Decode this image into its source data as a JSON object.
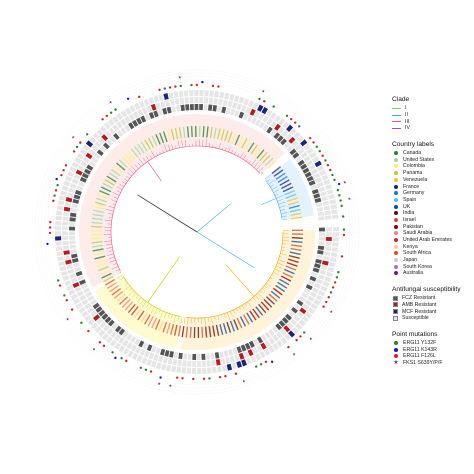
{
  "chart_data": {
    "type": "circular-phylogenetic-tree",
    "title": "",
    "legends": {
      "clade": {
        "title": "Clade",
        "items": [
          {
            "label": "I",
            "color": "#8dc63f"
          },
          {
            "label": "II",
            "color": "#3fa9f5"
          },
          {
            "label": "III",
            "color": "#e75480"
          },
          {
            "label": "IV",
            "color": "#9b59b6"
          }
        ]
      },
      "country": {
        "title": "Country labels",
        "items": [
          {
            "label": "Canada",
            "color": "#2e7d32"
          },
          {
            "label": "United States",
            "color": "#a5d6a7"
          },
          {
            "label": "Colombia",
            "color": "#fff176"
          },
          {
            "label": "Panama",
            "color": "#c0ca33"
          },
          {
            "label": "Venezuela",
            "color": "#fbc02d"
          },
          {
            "label": "France",
            "color": "#1a237e"
          },
          {
            "label": "Germany",
            "color": "#1976d2"
          },
          {
            "label": "Spain",
            "color": "#4fc3f7"
          },
          {
            "label": "UK",
            "color": "#0d47a1"
          },
          {
            "label": "India",
            "color": "#5d0f0f"
          },
          {
            "label": "Israel",
            "color": "#b35a3a"
          },
          {
            "label": "Pakistan",
            "color": "#8b0000"
          },
          {
            "label": "Saudi Arabia",
            "color": "#f08080"
          },
          {
            "label": "United Arab Emirates",
            "color": "#c62828"
          },
          {
            "label": "Kenya",
            "color": "#ffcc99"
          },
          {
            "label": "South Africa",
            "color": "#e64a19"
          },
          {
            "label": "Japan",
            "color": "#e1bee7"
          },
          {
            "label": "South Korea",
            "color": "#ba68c8"
          },
          {
            "label": "Australia",
            "color": "#6a1b9a"
          }
        ]
      },
      "susceptibility": {
        "title": "Antifungal susceptibility",
        "items": [
          {
            "label": "FCZ Resistant",
            "color": "#555555"
          },
          {
            "label": "AMB Resistant",
            "color": "#b71c1c"
          },
          {
            "label": "MCF Resistant",
            "color": "#1a237e"
          },
          {
            "label": "Susceptible",
            "color": "#e6e6e6"
          }
        ]
      },
      "mutations": {
        "title": "Point mutations",
        "items": [
          {
            "label": "ERG11 Y132F",
            "color": "#2e7d32",
            "shape": "dot"
          },
          {
            "label": "ERG11 K143R",
            "color": "#1a1ab0",
            "shape": "dot"
          },
          {
            "label": "ERG11 F126L",
            "color": "#c62828",
            "shape": "dot"
          },
          {
            "label": "FKS1 S639Y/P/F",
            "color": "#7b1fa2",
            "shape": "star"
          }
        ]
      }
    },
    "clades": [
      {
        "name": "I",
        "start_deg": 152,
        "end_deg": 318,
        "highlight": "#fdecea",
        "branch": "#e75480"
      },
      {
        "name": "II",
        "start_deg": 322,
        "end_deg": 352,
        "highlight": "#e3f2fd",
        "branch": "#3fa9f5"
      },
      {
        "name": "III",
        "start_deg": -1,
        "end_deg": 98,
        "highlight": "#fff3d9",
        "branch": "#f4a300"
      },
      {
        "name": "IV",
        "start_deg": 100,
        "end_deg": 150,
        "highlight": "#fffbd0",
        "branch": "#c6c600"
      }
    ],
    "rings": [
      "FCZ",
      "AMB",
      "MCF"
    ]
  }
}
